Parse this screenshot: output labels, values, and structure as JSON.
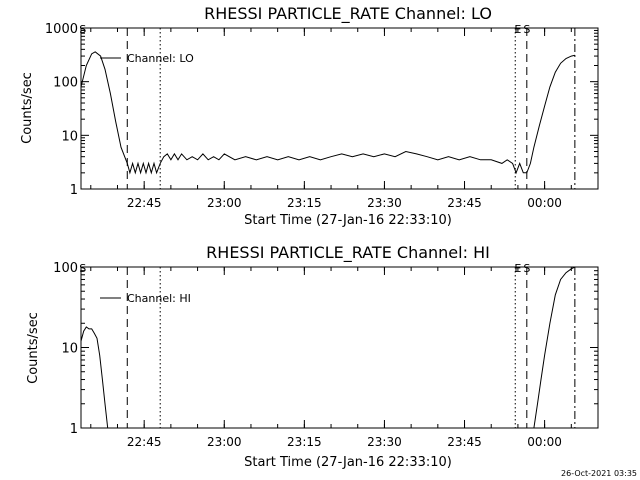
{
  "footer": {
    "timestamp": "26-Oct-2021 03:35"
  },
  "chart_data": [
    {
      "type": "line",
      "title": "RHESSI PARTICLE_RATE Channel: LO",
      "xlabel": "Start Time (27-Jan-16 22:33:10)",
      "ylabel": "Counts/sec",
      "yscale": "log",
      "xlim": [
        "22:33:10",
        "00:10:00"
      ],
      "ylim": [
        1,
        1000
      ],
      "xticks": [
        "22:45",
        "23:00",
        "23:15",
        "23:30",
        "23:45",
        "00:00"
      ],
      "yticks": [
        "1",
        "10",
        "100",
        "1000"
      ],
      "grid": false,
      "legend": {
        "position": "top-left",
        "entries": [
          "Channel: LO"
        ]
      },
      "annotations": [
        {
          "label": "S",
          "time": "22:33:30"
        },
        {
          "label": "E",
          "time": "23:55:00"
        },
        {
          "label": "S",
          "time": "23:56:40"
        }
      ],
      "markers": [
        {
          "style": "dashed",
          "time": "22:41:50"
        },
        {
          "style": "dotted",
          "time": "22:48:00"
        },
        {
          "style": "dotted",
          "time": "23:54:30"
        },
        {
          "style": "dashed",
          "time": "23:56:40"
        },
        {
          "style": "dashdot",
          "time": "00:05:40"
        }
      ],
      "series": [
        {
          "values": [
            [
              "22:33:10",
              80
            ],
            [
              "22:34:10",
              200
            ],
            [
              "22:35:10",
              330
            ],
            [
              "22:35:50",
              360
            ],
            [
              "22:36:50",
              300
            ],
            [
              "22:37:40",
              170
            ],
            [
              "22:38:40",
              60
            ],
            [
              "22:39:40",
              18
            ],
            [
              "22:40:40",
              6
            ],
            [
              "22:41:50",
              3
            ],
            [
              "22:42:20",
              2
            ],
            [
              "22:42:50",
              3
            ],
            [
              "22:43:20",
              2
            ],
            [
              "22:43:50",
              3
            ],
            [
              "22:44:20",
              2
            ],
            [
              "22:44:50",
              3
            ],
            [
              "22:45:20",
              2
            ],
            [
              "22:45:50",
              3
            ],
            [
              "22:46:20",
              2
            ],
            [
              "22:46:50",
              3
            ],
            [
              "22:47:20",
              2
            ],
            [
              "22:48:00",
              3
            ],
            [
              "22:48:40",
              4
            ],
            [
              "22:49:20",
              4.5
            ],
            [
              "22:50:00",
              3.5
            ],
            [
              "22:50:40",
              4.5
            ],
            [
              "22:51:20",
              3.5
            ],
            [
              "22:52:00",
              4.5
            ],
            [
              "22:53:00",
              3.5
            ],
            [
              "22:54:00",
              4
            ],
            [
              "22:55:00",
              3.5
            ],
            [
              "22:56:00",
              4.5
            ],
            [
              "22:57:00",
              3.5
            ],
            [
              "22:58:00",
              4
            ],
            [
              "22:59:00",
              3.5
            ],
            [
              "23:00:00",
              4.5
            ],
            [
              "23:02:00",
              3.5
            ],
            [
              "23:04:00",
              4
            ],
            [
              "23:06:00",
              3.5
            ],
            [
              "23:08:00",
              4
            ],
            [
              "23:10:00",
              3.5
            ],
            [
              "23:12:00",
              4
            ],
            [
              "23:14:00",
              3.5
            ],
            [
              "23:16:00",
              4
            ],
            [
              "23:18:00",
              3.5
            ],
            [
              "23:20:00",
              4
            ],
            [
              "23:22:00",
              4.5
            ],
            [
              "23:24:00",
              4
            ],
            [
              "23:26:00",
              4.5
            ],
            [
              "23:28:00",
              4
            ],
            [
              "23:30:00",
              4.5
            ],
            [
              "23:32:00",
              4
            ],
            [
              "23:34:00",
              5
            ],
            [
              "23:36:00",
              4.5
            ],
            [
              "23:38:00",
              4
            ],
            [
              "23:40:00",
              3.5
            ],
            [
              "23:42:00",
              4
            ],
            [
              "23:44:00",
              3.5
            ],
            [
              "23:46:00",
              4
            ],
            [
              "23:48:00",
              3.5
            ],
            [
              "23:50:00",
              3.5
            ],
            [
              "23:52:00",
              3
            ],
            [
              "23:53:00",
              3.5
            ],
            [
              "23:54:00",
              3
            ],
            [
              "23:54:40",
              2
            ],
            [
              "23:55:20",
              3
            ],
            [
              "23:56:00",
              2
            ],
            [
              "23:56:40",
              2
            ],
            [
              "23:57:20",
              3
            ],
            [
              "23:58:00",
              6
            ],
            [
              "23:59:00",
              15
            ],
            [
              "00:00:00",
              35
            ],
            [
              "00:01:00",
              80
            ],
            [
              "00:02:00",
              150
            ],
            [
              "00:03:00",
              220
            ],
            [
              "00:04:00",
              270
            ],
            [
              "00:05:00",
              300
            ],
            [
              "00:05:40",
              310
            ]
          ]
        }
      ]
    },
    {
      "type": "line",
      "title": "RHESSI PARTICLE_RATE Channel: HI",
      "xlabel": "Start Time (27-Jan-16 22:33:10)",
      "ylabel": "Counts/sec",
      "yscale": "log",
      "xlim": [
        "22:33:10",
        "00:10:00"
      ],
      "ylim": [
        1,
        100
      ],
      "xticks": [
        "22:45",
        "23:00",
        "23:15",
        "23:30",
        "23:45",
        "00:00"
      ],
      "yticks": [
        "1",
        "10",
        "100"
      ],
      "grid": false,
      "legend": {
        "position": "top-left",
        "entries": [
          "Channel: HI"
        ]
      },
      "annotations": [
        {
          "label": "S",
          "time": "22:33:30"
        },
        {
          "label": "E",
          "time": "23:55:00"
        },
        {
          "label": "S",
          "time": "23:56:40"
        }
      ],
      "markers": [
        {
          "style": "dashed",
          "time": "22:41:50"
        },
        {
          "style": "dotted",
          "time": "22:48:00"
        },
        {
          "style": "dotted",
          "time": "23:54:30"
        },
        {
          "style": "dashed",
          "time": "23:56:40"
        },
        {
          "style": "dashdot",
          "time": "00:05:40"
        }
      ],
      "series": [
        {
          "values": [
            [
              "22:33:10",
              12
            ],
            [
              "22:33:40",
              16
            ],
            [
              "22:34:10",
              18
            ],
            [
              "22:34:40",
              17
            ],
            [
              "22:35:10",
              17
            ],
            [
              "22:35:40",
              15
            ],
            [
              "22:36:10",
              13
            ],
            [
              "22:36:40",
              8
            ],
            [
              "22:37:10",
              4
            ],
            [
              "22:37:40",
              2
            ],
            [
              "22:38:10",
              1
            ],
            [
              "23:58:00",
              1
            ],
            [
              "23:58:40",
              2
            ],
            [
              "23:59:20",
              4
            ],
            [
              "00:00:00",
              8
            ],
            [
              "00:01:00",
              20
            ],
            [
              "00:02:00",
              45
            ],
            [
              "00:03:00",
              70
            ],
            [
              "00:04:00",
              85
            ],
            [
              "00:05:00",
              95
            ],
            [
              "00:05:40",
              100
            ]
          ]
        }
      ]
    }
  ]
}
